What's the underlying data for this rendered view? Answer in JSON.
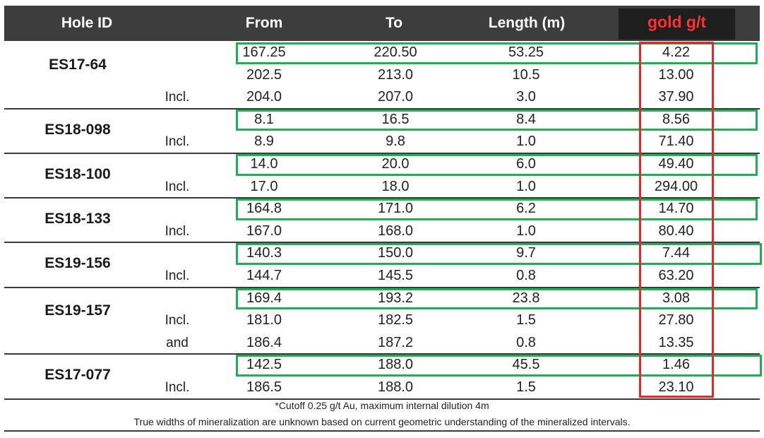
{
  "header": {
    "hole_id": "Hole ID",
    "from": "From",
    "to": "To",
    "length": "Length (m)",
    "gold": "gold g/t"
  },
  "groups": [
    {
      "hole": "ES17-64",
      "rows": [
        {
          "qual": "",
          "from": "167.25",
          "to": "220.50",
          "length": "53.25",
          "gold": "4.22"
        },
        {
          "qual": "",
          "from": "202.5",
          "to": "213.0",
          "length": "10.5",
          "gold": "13.00"
        },
        {
          "qual": "Incl.",
          "from": "204.0",
          "to": "207.0",
          "length": "3.0",
          "gold": "37.90"
        }
      ]
    },
    {
      "hole": "ES18-098",
      "rows": [
        {
          "qual": "",
          "from": "8.1",
          "to": "16.5",
          "length": "8.4",
          "gold": "8.56"
        },
        {
          "qual": "Incl.",
          "from": "8.9",
          "to": "9.8",
          "length": "1.0",
          "gold": "71.40"
        }
      ]
    },
    {
      "hole": "ES18-100",
      "rows": [
        {
          "qual": "",
          "from": "14.0",
          "to": "20.0",
          "length": "6.0",
          "gold": "49.40"
        },
        {
          "qual": "Incl.",
          "from": "17.0",
          "to": "18.0",
          "length": "1.0",
          "gold": "294.00"
        }
      ]
    },
    {
      "hole": "ES18-133",
      "rows": [
        {
          "qual": "",
          "from": "164.8",
          "to": "171.0",
          "length": "6.2",
          "gold": "14.70"
        },
        {
          "qual": "Incl.",
          "from": "167.0",
          "to": "168.0",
          "length": "1.0",
          "gold": "80.40"
        }
      ]
    },
    {
      "hole": "ES19-156",
      "rows": [
        {
          "qual": "",
          "from": "140.3",
          "to": "150.0",
          "length": "9.7",
          "gold": "7.44"
        },
        {
          "qual": "Incl.",
          "from": "144.7",
          "to": "145.5",
          "length": "0.8",
          "gold": "63.20"
        }
      ]
    },
    {
      "hole": "ES19-157",
      "rows": [
        {
          "qual": "",
          "from": "169.4",
          "to": "193.2",
          "length": "23.8",
          "gold": "3.08"
        },
        {
          "qual": "Incl.",
          "from": "181.0",
          "to": "182.5",
          "length": "1.5",
          "gold": "27.80"
        },
        {
          "qual": "and",
          "from": "186.4",
          "to": "187.2",
          "length": "0.8",
          "gold": "13.35"
        }
      ]
    },
    {
      "hole": "ES17-077",
      "rows": [
        {
          "qual": "",
          "from": "142.5",
          "to": "188.0",
          "length": "45.5",
          "gold": "1.46"
        },
        {
          "qual": "Incl.",
          "from": "186.5",
          "to": "188.0",
          "length": "1.5",
          "gold": "23.10"
        }
      ]
    }
  ],
  "footnotes": [
    "*Cutoff 0.25 g/t Au, maximum internal dilution 4m",
    "True widths of mineralization are unknown based on current geometric understanding of the mineralized intervals."
  ],
  "colors": {
    "header_bg": "#3d3d3d",
    "gold_label": "#ff3030",
    "highlight_green": "#1fae57",
    "highlight_red": "#e02a2a"
  }
}
